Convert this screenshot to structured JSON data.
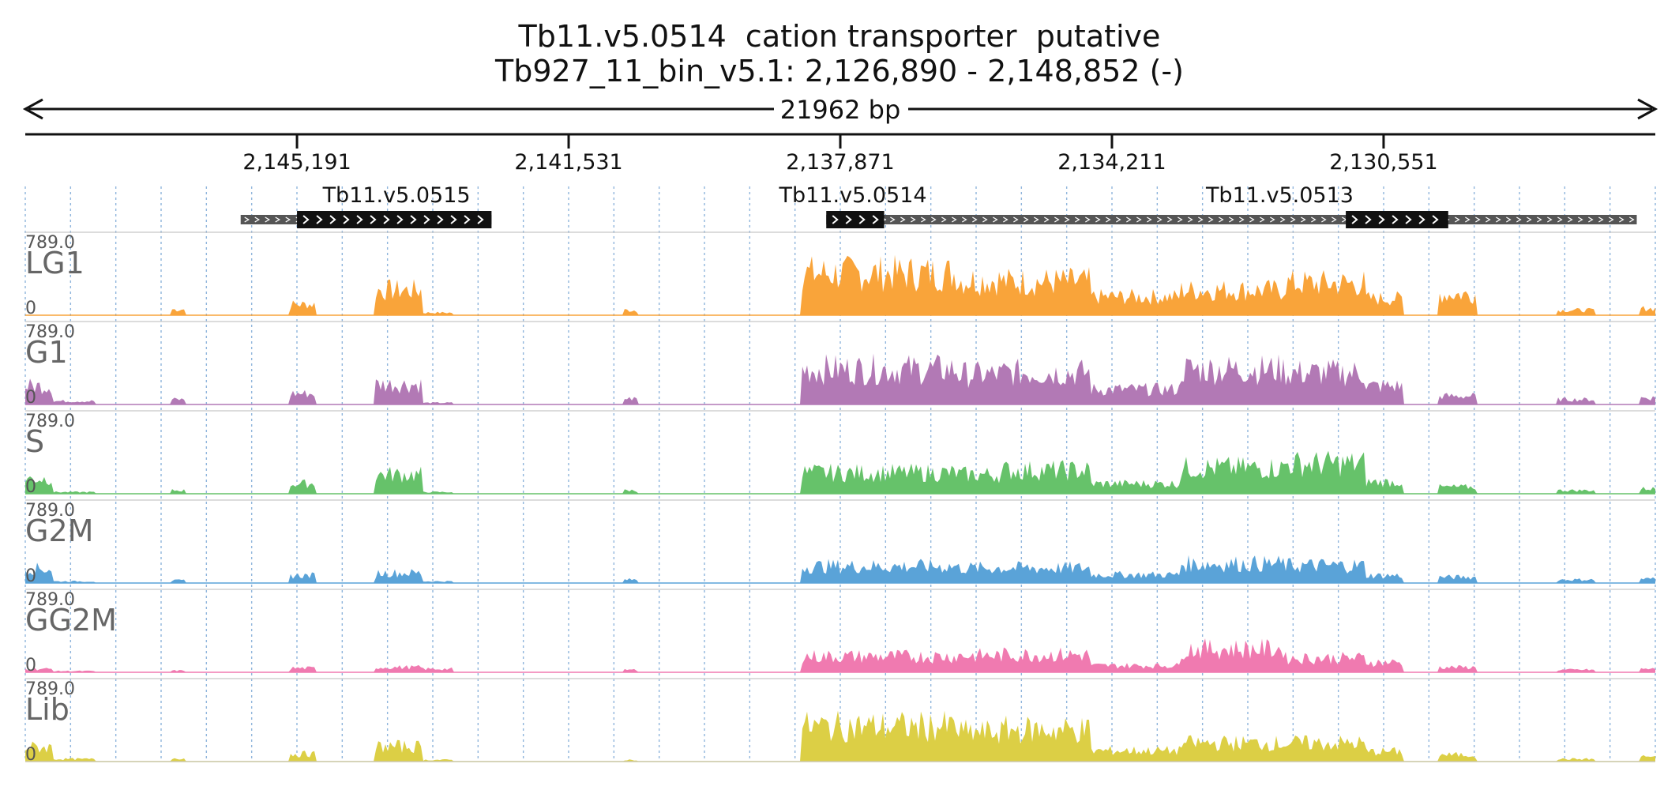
{
  "header": {
    "title": "Tb11.v5.0514  cation transporter  putative",
    "subtitle": "Tb927_11_bin_v5.1: 2,126,890 - 2,148,852 (-)"
  },
  "chart_data": {
    "type": "area",
    "region": {
      "chromosome": "Tb927_11_bin_v5.1",
      "start": 2126890,
      "end": 2148852,
      "strand": "-",
      "span_label": "21962 bp"
    },
    "x_ticks": [
      {
        "value": 2145191,
        "label": "2,145,191"
      },
      {
        "value": 2141531,
        "label": "2,141,531"
      },
      {
        "value": 2137871,
        "label": "2,137,871"
      },
      {
        "value": 2134211,
        "label": "2,134,211"
      },
      {
        "value": 2130551,
        "label": "2,130,551"
      }
    ],
    "genes": [
      {
        "name": "Tb11.v5.0515",
        "start": 2142570,
        "end": 2145950,
        "cds_start": 2142570,
        "cds_end": 2145191,
        "label_pos": 2143850
      },
      {
        "name": "Tb11.v5.0514",
        "start": 2137240,
        "end": 2138060,
        "cds_start": 2137280,
        "cds_end": 2138060,
        "label_pos": 2137700
      },
      {
        "name": "Tb11.v5.0513",
        "start": 2127140,
        "end": 2137250,
        "cds_start": 2129680,
        "cds_end": 2131060,
        "label_pos": 2131950
      }
    ],
    "y_range": [
      0,
      789.0
    ],
    "y_max_label": "789.0",
    "y_min_label": "0",
    "tracks": [
      {
        "name": "LG1",
        "color": "#f9a43a"
      },
      {
        "name": "G1",
        "color": "#b279b5"
      },
      {
        "name": "S",
        "color": "#66c26a"
      },
      {
        "name": "G2M",
        "color": "#5aa3d8"
      },
      {
        "name": "GG2M",
        "color": "#f07ab0"
      },
      {
        "name": "Lib",
        "color": "#dccf45"
      }
    ],
    "coverage_profile": [
      {
        "start": 2148852,
        "end": 2148500,
        "tracks": [
          0,
          220,
          180,
          170,
          40,
          170
        ]
      },
      {
        "start": 2148500,
        "end": 2147900,
        "tracks": [
          0,
          40,
          20,
          20,
          15,
          30
        ]
      },
      {
        "start": 2146900,
        "end": 2146700,
        "tracks": [
          70,
          60,
          40,
          30,
          20,
          40
        ]
      },
      {
        "start": 2145300,
        "end": 2144950,
        "tracks": [
          130,
          130,
          120,
          90,
          50,
          90
        ]
      },
      {
        "start": 2144150,
        "end": 2143500,
        "tracks": [
          300,
          240,
          230,
          120,
          60,
          180
        ]
      },
      {
        "start": 2143500,
        "end": 2143100,
        "tracks": [
          30,
          20,
          20,
          20,
          40,
          20
        ]
      },
      {
        "start": 2140800,
        "end": 2140600,
        "tracks": [
          60,
          70,
          40,
          40,
          30,
          20
        ]
      },
      {
        "start": 2138400,
        "end": 2136300,
        "tracks": [
          500,
          420,
          250,
          200,
          190,
          420
        ]
      },
      {
        "start": 2136300,
        "end": 2135700,
        "tracks": [
          420,
          360,
          230,
          180,
          200,
          350
        ]
      },
      {
        "start": 2135700,
        "end": 2134500,
        "tracks": [
          400,
          380,
          280,
          180,
          210,
          380
        ]
      },
      {
        "start": 2134500,
        "end": 2133300,
        "tracks": [
          220,
          180,
          120,
          100,
          80,
          130
        ]
      },
      {
        "start": 2133300,
        "end": 2131900,
        "tracks": [
          300,
          420,
          310,
          230,
          280,
          220
        ]
      },
      {
        "start": 2131900,
        "end": 2130800,
        "tracks": [
          380,
          380,
          360,
          210,
          170,
          220
        ]
      },
      {
        "start": 2130800,
        "end": 2130300,
        "tracks": [
          200,
          220,
          140,
          90,
          120,
          120
        ]
      },
      {
        "start": 2129800,
        "end": 2129300,
        "tracks": [
          250,
          100,
          80,
          70,
          60,
          80
        ]
      },
      {
        "start": 2128200,
        "end": 2127700,
        "tracks": [
          60,
          60,
          40,
          40,
          30,
          30
        ]
      },
      {
        "start": 2127100,
        "end": 2126890,
        "tracks": [
          80,
          80,
          60,
          50,
          40,
          60
        ]
      }
    ],
    "notes": "Coverage tracks are genome-browser read-depth areas over a reversed (minus-strand) axis; profile values are approximate levels read from the figure."
  }
}
